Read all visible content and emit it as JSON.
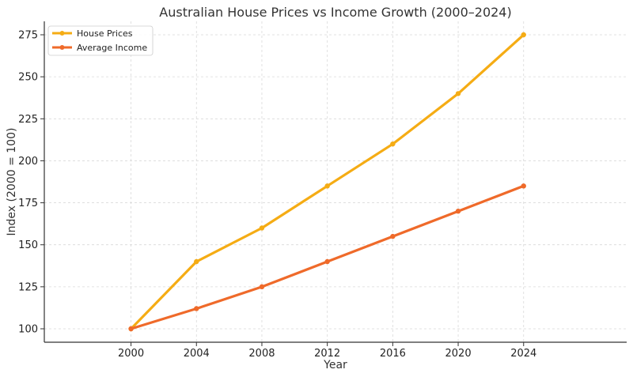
{
  "chart_data": {
    "type": "line",
    "title": "Australian House Prices vs Income Growth (2000–2024)",
    "xlabel": "Year",
    "ylabel": "Index (2000 = 100)",
    "x": [
      2000,
      2004,
      2008,
      2012,
      2016,
      2020,
      2024
    ],
    "x_ticks": [
      "2000",
      "2004",
      "2008",
      "2012",
      "2016",
      "2020",
      "2024"
    ],
    "y_ticks": [
      "100",
      "125",
      "150",
      "175",
      "200",
      "225",
      "250",
      "275"
    ],
    "xlim": [
      1994.7,
      2030.3
    ],
    "ylim": [
      92,
      283
    ],
    "grid": true,
    "legend_position": "top-left",
    "series": [
      {
        "name": "House Prices",
        "color": "#f5ac14",
        "values": [
          100,
          140,
          160,
          185,
          210,
          240,
          275
        ]
      },
      {
        "name": "Average Income",
        "color": "#ef6a2a",
        "values": [
          100,
          112,
          125,
          140,
          155,
          170,
          185
        ]
      }
    ]
  }
}
